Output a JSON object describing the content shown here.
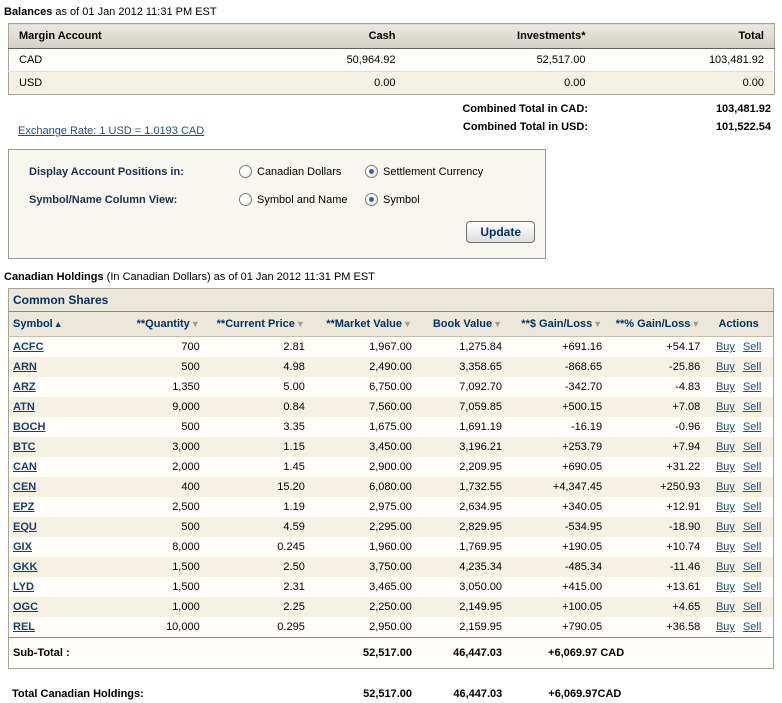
{
  "icons": {
    "sort_asc": "▲",
    "sort_desc": "▼"
  },
  "colors": {
    "navy": "#003366",
    "link": "#1d4f91",
    "beige_row": "#f5f2e4",
    "band": "#ebe8d9",
    "header_gradient_top": "#eae8e0",
    "header_gradient_bottom": "#d2cfc5"
  },
  "balances": {
    "title": "Balances",
    "as_of": " as of 01 Jan 2012 11:31 PM EST",
    "table": {
      "headers": [
        "Margin Account",
        "Cash",
        "Investments*",
        "Total"
      ],
      "rows": [
        {
          "account": "CAD",
          "cash": "50,964.92",
          "investments": "52,517.00",
          "total": "103,481.92"
        },
        {
          "account": "USD",
          "cash": "0.00",
          "investments": "0.00",
          "total": "0.00"
        }
      ]
    },
    "combined_cad_label": "Combined Total in CAD:",
    "combined_cad_value": "103,481.92",
    "combined_usd_label": "Combined Total in USD:",
    "combined_usd_value": "101,522.54",
    "exchange_rate_link": "Exchange Rate: 1 USD = 1.0193 CAD"
  },
  "options": {
    "display_label": "Display Account Positions in:",
    "display_options": [
      {
        "label": "Canadian Dollars",
        "selected": false
      },
      {
        "label": "Settlement Currency",
        "selected": true
      }
    ],
    "symbol_label": "Symbol/Name Column View:",
    "symbol_options": [
      {
        "label": "Symbol and Name",
        "selected": false
      },
      {
        "label": "Symbol",
        "selected": true
      }
    ],
    "update_button": "Update"
  },
  "holdings": {
    "title": "Canadian Holdings",
    "subtitle": " (In Canadian Dollars) as of 01 Jan 2012 11:31 PM EST",
    "section": "Common Shares",
    "columns": [
      "Symbol",
      "**Quantity",
      "**Current Price",
      "**Market Value",
      "Book Value",
      "**$ Gain/Loss",
      "**% Gain/Loss",
      "Actions"
    ],
    "buy_label": "Buy",
    "sell_label": "Sell",
    "rows": [
      {
        "symbol": "ACFC",
        "quantity": "700",
        "price": "2.81",
        "market_value": "1,967.00",
        "book_value": "1,275.84",
        "gain_dollar": "+691.16",
        "gain_pct": "+54.17"
      },
      {
        "symbol": "ARN",
        "quantity": "500",
        "price": "4.98",
        "market_value": "2,490.00",
        "book_value": "3,358.65",
        "gain_dollar": "-868.65",
        "gain_pct": "-25.86"
      },
      {
        "symbol": "ARZ",
        "quantity": "1,350",
        "price": "5.00",
        "market_value": "6,750.00",
        "book_value": "7,092.70",
        "gain_dollar": "-342.70",
        "gain_pct": "-4.83"
      },
      {
        "symbol": "ATN",
        "quantity": "9,000",
        "price": "0.84",
        "market_value": "7,560.00",
        "book_value": "7,059.85",
        "gain_dollar": "+500.15",
        "gain_pct": "+7.08"
      },
      {
        "symbol": "BOCH",
        "quantity": "500",
        "price": "3.35",
        "market_value": "1,675.00",
        "book_value": "1,691.19",
        "gain_dollar": "-16.19",
        "gain_pct": "-0.96"
      },
      {
        "symbol": "BTC",
        "quantity": "3,000",
        "price": "1.15",
        "market_value": "3,450.00",
        "book_value": "3,196.21",
        "gain_dollar": "+253.79",
        "gain_pct": "+7.94"
      },
      {
        "symbol": "CAN",
        "quantity": "2,000",
        "price": "1.45",
        "market_value": "2,900.00",
        "book_value": "2,209.95",
        "gain_dollar": "+690.05",
        "gain_pct": "+31.22"
      },
      {
        "symbol": "CEN",
        "quantity": "400",
        "price": "15.20",
        "market_value": "6,080.00",
        "book_value": "1,732.55",
        "gain_dollar": "+4,347.45",
        "gain_pct": "+250.93"
      },
      {
        "symbol": "EPZ",
        "quantity": "2,500",
        "price": "1.19",
        "market_value": "2,975.00",
        "book_value": "2,634.95",
        "gain_dollar": "+340.05",
        "gain_pct": "+12.91"
      },
      {
        "symbol": "EQU",
        "quantity": "500",
        "price": "4.59",
        "market_value": "2,295.00",
        "book_value": "2,829.95",
        "gain_dollar": "-534.95",
        "gain_pct": "-18.90"
      },
      {
        "symbol": "GIX",
        "quantity": "8,000",
        "price": "0.245",
        "market_value": "1,960.00",
        "book_value": "1,769.95",
        "gain_dollar": "+190.05",
        "gain_pct": "+10.74"
      },
      {
        "symbol": "GKK",
        "quantity": "1,500",
        "price": "2.50",
        "market_value": "3,750.00",
        "book_value": "4,235.34",
        "gain_dollar": "-485.34",
        "gain_pct": "-11.46"
      },
      {
        "symbol": "LYD",
        "quantity": "1,500",
        "price": "2.31",
        "market_value": "3,465.00",
        "book_value": "3,050.00",
        "gain_dollar": "+415.00",
        "gain_pct": "+13.61"
      },
      {
        "symbol": "OGC",
        "quantity": "1,000",
        "price": "2.25",
        "market_value": "2,250.00",
        "book_value": "2,149.95",
        "gain_dollar": "+100.05",
        "gain_pct": "+4.65"
      },
      {
        "symbol": "REL",
        "quantity": "10,000",
        "price": "0.295",
        "market_value": "2,950.00",
        "book_value": "2,159.95",
        "gain_dollar": "+790.05",
        "gain_pct": "+36.58"
      }
    ],
    "subtotal": {
      "label": "Sub-Total :",
      "market_value": "52,517.00",
      "book_value": "46,447.03",
      "gain": "+6,069.97 CAD"
    },
    "total": {
      "label": "Total Canadian Holdings:",
      "market_value": "52,517.00",
      "book_value": "46,447.03",
      "gain": "+6,069.97CAD"
    }
  }
}
